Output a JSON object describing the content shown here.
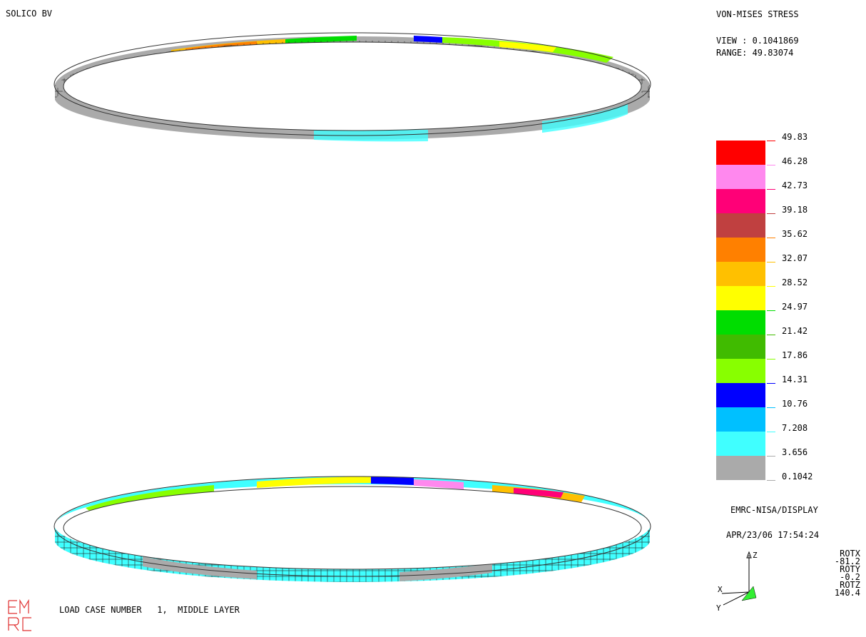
{
  "header": {
    "company": "SOLICO BV",
    "plot_title": "VON-MISES STRESS",
    "view_line": "VIEW : 0.1041869",
    "range_line": "RANGE: 49.83074"
  },
  "legend": {
    "bands": [
      {
        "color": "#ff0000",
        "label": "49.83"
      },
      {
        "color": "#ff88ee",
        "label": "46.28"
      },
      {
        "color": "#ff0077",
        "label": "42.73"
      },
      {
        "color": "#c04040",
        "label": "39.18"
      },
      {
        "color": "#ff8000",
        "label": "35.62"
      },
      {
        "color": "#ffc000",
        "label": "32.07"
      },
      {
        "color": "#ffff00",
        "label": "28.52"
      },
      {
        "color": "#00dd00",
        "label": "24.97"
      },
      {
        "color": "#40bb00",
        "label": "21.42"
      },
      {
        "color": "#88ff00",
        "label": "17.86"
      },
      {
        "color": "#0000ff",
        "label": "14.31"
      },
      {
        "color": "#00c0ff",
        "label": "10.76"
      },
      {
        "color": "#40ffff",
        "label": "7.208"
      },
      {
        "color": "#aaaaaa",
        "label": "3.656"
      }
    ],
    "bottom_label": "0.1042"
  },
  "footer": {
    "software": "EMRC-NISA/DISPLAY",
    "timestamp": "APR/23/06 17:54:24",
    "load_case": "LOAD CASE NUMBER   1,  MIDDLE LAYER",
    "logo_text": "EMRC"
  },
  "triad": {
    "z": "Z",
    "x": "X",
    "y": "Y"
  },
  "rotation": {
    "rotx_label": "ROTX",
    "rotx_value": "-81.2",
    "roty_label": "ROTY",
    "roty_value": "-0.2",
    "rotz_label": "ROTZ",
    "rotz_value": "140.4"
  }
}
